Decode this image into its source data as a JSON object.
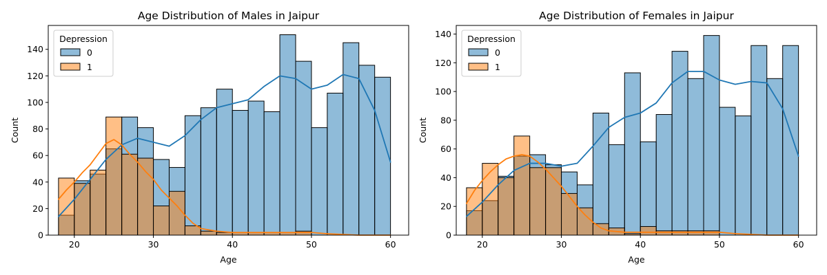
{
  "chart_data": [
    {
      "type": "histogram",
      "title": "Age Distribution of Males in Jaipur",
      "xlabel": "Age",
      "ylabel": "Count",
      "xlim": [
        16.7,
        62.3
      ],
      "ylim": [
        0,
        158
      ],
      "xticks": [
        20,
        30,
        40,
        50,
        60
      ],
      "yticks": [
        0,
        20,
        40,
        60,
        80,
        100,
        120,
        140
      ],
      "bin_start": 18,
      "bin_width": 2,
      "legend": {
        "title": "Depression",
        "placement": "top-left"
      },
      "series": [
        {
          "name": "0",
          "color": "#1f77b4",
          "values": [
            15,
            41,
            46,
            65,
            89,
            81,
            57,
            51,
            90,
            96,
            110,
            94,
            101,
            93,
            151,
            131,
            81,
            107,
            145,
            128,
            119
          ],
          "kde": [
            [
              18,
              14
            ],
            [
              20,
              27
            ],
            [
              22,
              42
            ],
            [
              24,
              57
            ],
            [
              26,
              68
            ],
            [
              28,
              73
            ],
            [
              30,
              70
            ],
            [
              32,
              67
            ],
            [
              34,
              75
            ],
            [
              36,
              87
            ],
            [
              38,
              96
            ],
            [
              40,
              99
            ],
            [
              42,
              102
            ],
            [
              44,
              112
            ],
            [
              46,
              120
            ],
            [
              48,
              118
            ],
            [
              50,
              110
            ],
            [
              52,
              113
            ],
            [
              54,
              121
            ],
            [
              56,
              118
            ],
            [
              58,
              94
            ],
            [
              60,
              55
            ]
          ]
        },
        {
          "name": "1",
          "color": "#ff7f0e",
          "values": [
            43,
            39,
            49,
            89,
            61,
            58,
            22,
            33,
            7,
            3,
            2,
            2,
            2,
            2,
            2,
            3,
            0,
            0,
            0,
            0,
            0
          ],
          "kde": [
            [
              18,
              27
            ],
            [
              19,
              34
            ],
            [
              20,
              40
            ],
            [
              21,
              47
            ],
            [
              22,
              53
            ],
            [
              23,
              61
            ],
            [
              24,
              69
            ],
            [
              25,
              72
            ],
            [
              26,
              68
            ],
            [
              27,
              61
            ],
            [
              28,
              55
            ],
            [
              29,
              48
            ],
            [
              30,
              42
            ],
            [
              31,
              34
            ],
            [
              32,
              28
            ],
            [
              33,
              22
            ],
            [
              34,
              15
            ],
            [
              35,
              9
            ],
            [
              36,
              5
            ],
            [
              38,
              3
            ],
            [
              40,
              2
            ],
            [
              44,
              2
            ],
            [
              48,
              2
            ],
            [
              50,
              2
            ],
            [
              52,
              1
            ],
            [
              56,
              0
            ],
            [
              60,
              0
            ]
          ]
        }
      ]
    },
    {
      "type": "histogram",
      "title": "Age Distribution of Females in Jaipur",
      "xlabel": "Age",
      "ylabel": "Count",
      "xlim": [
        16.7,
        62.3
      ],
      "ylim": [
        0,
        146
      ],
      "xticks": [
        20,
        30,
        40,
        50,
        60
      ],
      "yticks": [
        0,
        20,
        40,
        60,
        80,
        100,
        120,
        140
      ],
      "bin_start": 18,
      "bin_width": 2,
      "legend": {
        "title": "Depression",
        "placement": "top-left"
      },
      "series": [
        {
          "name": "0",
          "color": "#1f77b4",
          "values": [
            17,
            24,
            41,
            55,
            56,
            49,
            44,
            35,
            85,
            63,
            113,
            65,
            84,
            128,
            109,
            139,
            89,
            83,
            132,
            109,
            132
          ],
          "kde": [
            [
              18,
              13
            ],
            [
              20,
              23
            ],
            [
              22,
              35
            ],
            [
              24,
              45
            ],
            [
              26,
              50
            ],
            [
              28,
              50
            ],
            [
              30,
              48
            ],
            [
              32,
              50
            ],
            [
              34,
              62
            ],
            [
              36,
              75
            ],
            [
              38,
              82
            ],
            [
              40,
              85
            ],
            [
              42,
              92
            ],
            [
              44,
              106
            ],
            [
              46,
              114
            ],
            [
              48,
              114
            ],
            [
              50,
              108
            ],
            [
              52,
              105
            ],
            [
              54,
              107
            ],
            [
              56,
              106
            ],
            [
              58,
              88
            ],
            [
              60,
              55
            ]
          ]
        },
        {
          "name": "1",
          "color": "#ff7f0e",
          "values": [
            33,
            50,
            40,
            69,
            47,
            47,
            29,
            19,
            8,
            5,
            1,
            6,
            3,
            3,
            3,
            3,
            0,
            0,
            0,
            0,
            0
          ],
          "kde": [
            [
              18,
              22
            ],
            [
              19,
              31
            ],
            [
              20,
              38
            ],
            [
              21,
              44
            ],
            [
              22,
              49
            ],
            [
              23,
              53
            ],
            [
              24,
              55
            ],
            [
              25,
              56
            ],
            [
              26,
              55
            ],
            [
              27,
              51
            ],
            [
              28,
              46
            ],
            [
              29,
              40
            ],
            [
              30,
              34
            ],
            [
              31,
              27
            ],
            [
              32,
              20
            ],
            [
              33,
              14
            ],
            [
              34,
              9
            ],
            [
              35,
              5
            ],
            [
              36,
              3
            ],
            [
              38,
              2
            ],
            [
              40,
              2
            ],
            [
              44,
              2
            ],
            [
              48,
              2
            ],
            [
              50,
              2
            ],
            [
              52,
              1
            ],
            [
              56,
              0
            ],
            [
              60,
              0
            ]
          ]
        }
      ]
    }
  ]
}
